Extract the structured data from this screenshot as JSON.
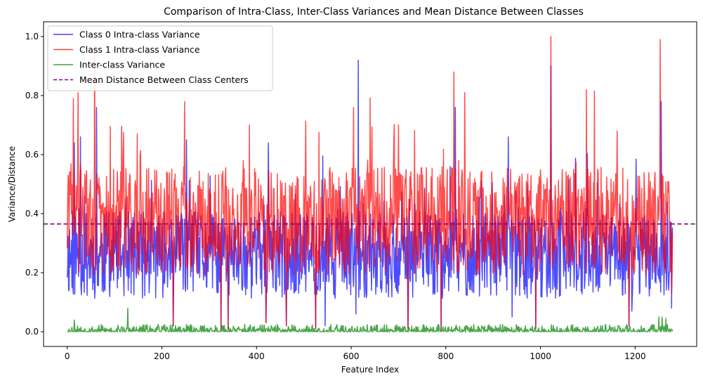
{
  "chart_data": {
    "type": "line",
    "title": "Comparison of Intra-Class, Inter-Class Variances and Mean Distance Between Classes",
    "xlabel": "Feature Index",
    "ylabel": "Variance/Distance",
    "xlim": [
      -50,
      1330
    ],
    "ylim": [
      -0.05,
      1.05
    ],
    "x_ticks": [
      0,
      200,
      400,
      600,
      800,
      1000,
      1200
    ],
    "x_tick_labels": [
      "0",
      "200",
      "400",
      "600",
      "800",
      "1000",
      "1200"
    ],
    "y_ticks": [
      0.0,
      0.2,
      0.4,
      0.6,
      0.8,
      1.0
    ],
    "y_tick_labels": [
      "0.0",
      "0.2",
      "0.4",
      "0.6",
      "0.8",
      "1.0"
    ],
    "grid": false,
    "legend_position": "top-left",
    "n_features": 1280,
    "series": [
      {
        "name": "Class 0 Intra-class Variance",
        "color": "#0000ff",
        "style": "solid",
        "typical_range": [
          0.12,
          0.4
        ],
        "peaks": [
          {
            "x": 15,
            "y": 0.64
          },
          {
            "x": 28,
            "y": 0.66
          },
          {
            "x": 62,
            "y": 0.76
          },
          {
            "x": 252,
            "y": 0.65
          },
          {
            "x": 425,
            "y": 0.64
          },
          {
            "x": 540,
            "y": 0.595
          },
          {
            "x": 615,
            "y": 0.92
          },
          {
            "x": 820,
            "y": 0.76
          },
          {
            "x": 932,
            "y": 0.66
          },
          {
            "x": 1022,
            "y": 0.9
          },
          {
            "x": 1255,
            "y": 0.78
          }
        ],
        "dips": [
          {
            "x": 224,
            "y": 0.02
          },
          {
            "x": 325,
            "y": 0.01
          },
          {
            "x": 340,
            "y": 0.01
          },
          {
            "x": 420,
            "y": 0.03
          },
          {
            "x": 463,
            "y": 0.02
          },
          {
            "x": 525,
            "y": 0.01
          },
          {
            "x": 545,
            "y": 0.02
          },
          {
            "x": 610,
            "y": 0.06
          },
          {
            "x": 720,
            "y": 0.01
          },
          {
            "x": 790,
            "y": 0.01
          },
          {
            "x": 940,
            "y": 0.05
          },
          {
            "x": 990,
            "y": 0.01
          },
          {
            "x": 1187,
            "y": 0.02
          },
          {
            "x": 1193,
            "y": 0.07
          },
          {
            "x": 1277,
            "y": 0.08
          }
        ]
      },
      {
        "name": "Class 1 Intra-class Variance",
        "color": "#ff0000",
        "style": "solid",
        "typical_range": [
          0.2,
          0.55
        ],
        "peaks": [
          {
            "x": 2,
            "y": 0.53
          },
          {
            "x": 13,
            "y": 0.79
          },
          {
            "x": 23,
            "y": 0.81
          },
          {
            "x": 58,
            "y": 0.97
          },
          {
            "x": 148,
            "y": 0.67
          },
          {
            "x": 248,
            "y": 0.78
          },
          {
            "x": 385,
            "y": 0.7
          },
          {
            "x": 605,
            "y": 0.76
          },
          {
            "x": 700,
            "y": 0.7
          },
          {
            "x": 817,
            "y": 0.88
          },
          {
            "x": 840,
            "y": 0.81
          },
          {
            "x": 1022,
            "y": 1.0
          },
          {
            "x": 1097,
            "y": 0.82
          },
          {
            "x": 1253,
            "y": 0.99
          }
        ],
        "dips": [
          {
            "x": 224,
            "y": 0.02
          },
          {
            "x": 325,
            "y": 0.01
          },
          {
            "x": 340,
            "y": 0.01
          },
          {
            "x": 420,
            "y": 0.03
          },
          {
            "x": 463,
            "y": 0.02
          },
          {
            "x": 525,
            "y": 0.01
          },
          {
            "x": 720,
            "y": 0.01
          },
          {
            "x": 790,
            "y": 0.01
          },
          {
            "x": 990,
            "y": 0.01
          },
          {
            "x": 1187,
            "y": 0.02
          },
          {
            "x": 1277,
            "y": 0.13
          }
        ]
      },
      {
        "name": "Inter-class Variance",
        "color": "#008000",
        "style": "solid",
        "typical_range": [
          0.0,
          0.02
        ],
        "peaks": [
          {
            "x": 128,
            "y": 0.08
          },
          {
            "x": 15,
            "y": 0.04
          },
          {
            "x": 1250,
            "y": 0.05
          },
          {
            "x": 1257,
            "y": 0.05
          },
          {
            "x": 1265,
            "y": 0.045
          }
        ]
      },
      {
        "name": "Mean Distance Between Class Centers",
        "color": "#800080",
        "style": "dashed",
        "constant": 0.365
      }
    ]
  }
}
